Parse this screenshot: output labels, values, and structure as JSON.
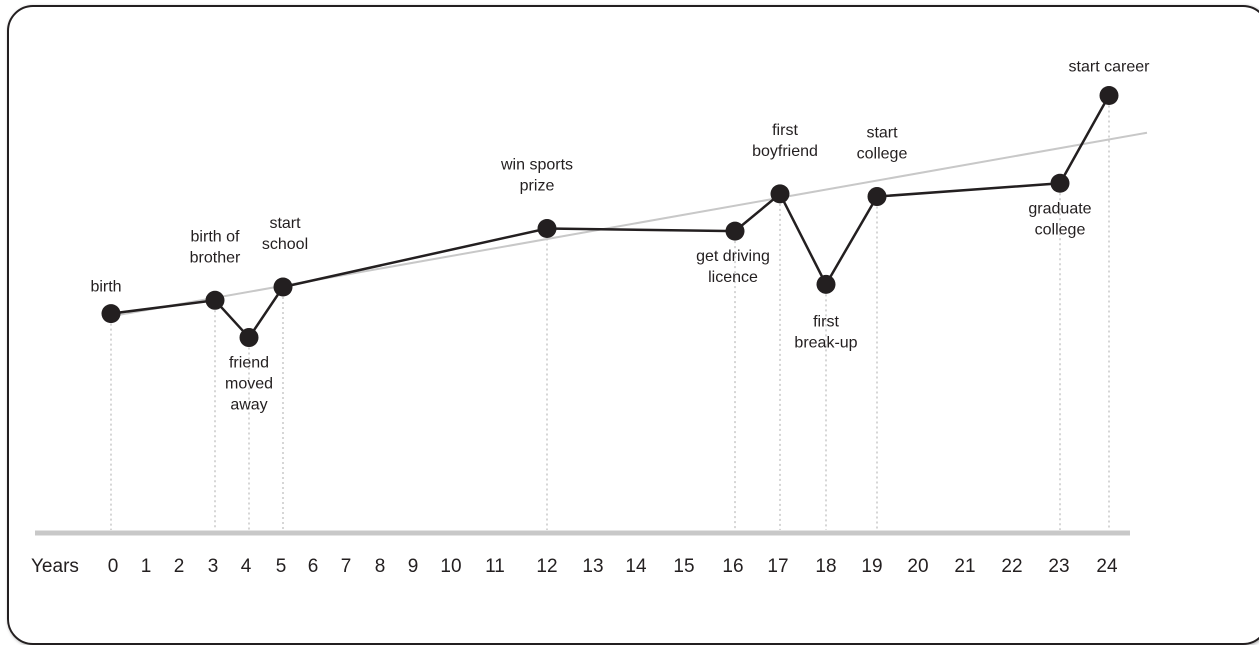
{
  "chart_data": {
    "type": "line",
    "title": "",
    "xlabel": "Years",
    "ylabel": "",
    "x_ticks": [
      0,
      1,
      2,
      3,
      4,
      5,
      6,
      7,
      8,
      9,
      10,
      11,
      12,
      13,
      14,
      15,
      16,
      17,
      18,
      19,
      20,
      21,
      22,
      23,
      24
    ],
    "xlim": [
      0,
      24
    ],
    "ylim": [
      0,
      10
    ],
    "grid": false,
    "legend": "none",
    "colors": {
      "line": "#231f20",
      "trend": "#c8c8c8",
      "axis": "#c8c8c8",
      "dropline": "#c8c8c8"
    },
    "series": [
      {
        "points": [
          {
            "x": 0,
            "y": 4.0,
            "label": [
              "birth"
            ]
          },
          {
            "x": 3,
            "y": 4.5,
            "label": [
              "birth of",
              "brother"
            ]
          },
          {
            "x": 4,
            "y": 3.1,
            "label": [
              "friend",
              "moved",
              "away"
            ]
          },
          {
            "x": 5,
            "y": 5.0,
            "label": [
              "start",
              "school"
            ]
          },
          {
            "x": 12,
            "y": 7.2,
            "label": [
              "win sports",
              "prize"
            ]
          },
          {
            "x": 16,
            "y": 7.1,
            "label": [
              "get driving",
              "licence"
            ]
          },
          {
            "x": 17,
            "y": 8.5,
            "label": [
              "first",
              "boyfriend"
            ]
          },
          {
            "x": 18,
            "y": 5.1,
            "label": [
              "first",
              "break-up"
            ]
          },
          {
            "x": 19,
            "y": 8.4,
            "label": [
              "start",
              "college"
            ]
          },
          {
            "x": 23,
            "y": 8.9,
            "label": [
              "graduate",
              "college"
            ]
          },
          {
            "x": 24,
            "y": 12.2,
            "label": [
              "start career"
            ]
          }
        ]
      }
    ],
    "trendline": {
      "start": [
        0,
        3.9
      ],
      "end": [
        25,
        10.8
      ]
    }
  }
}
